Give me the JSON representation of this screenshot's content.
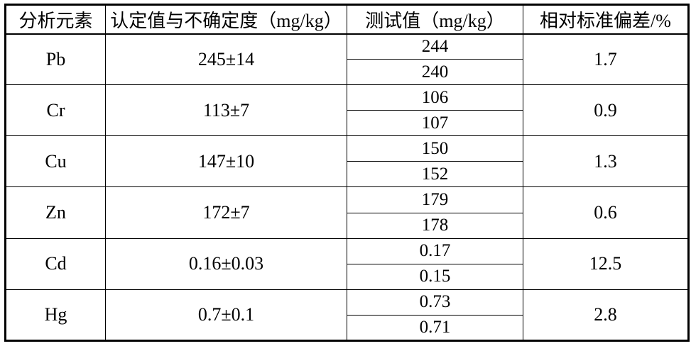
{
  "table": {
    "headers": {
      "element": "分析元素",
      "certified": "认定值与不确定度（mg/kg）",
      "test": "测试值（mg/kg）",
      "rsd": "相对标准偏差/%"
    },
    "rows": [
      {
        "element": "Pb",
        "certified": "245±14",
        "test1": "244",
        "test2": "240",
        "rsd": "1.7"
      },
      {
        "element": "Cr",
        "certified": "113±7",
        "test1": "106",
        "test2": "107",
        "rsd": "0.9"
      },
      {
        "element": "Cu",
        "certified": "147±10",
        "test1": "150",
        "test2": "152",
        "rsd": "1.3"
      },
      {
        "element": "Zn",
        "certified": "172±7",
        "test1": "179",
        "test2": "178",
        "rsd": "0.6"
      },
      {
        "element": "Cd",
        "certified": "0.16±0.03",
        "test1": "0.17",
        "test2": "0.15",
        "rsd": "12.5"
      },
      {
        "element": "Hg",
        "certified": "0.7±0.1",
        "test1": "0.73",
        "test2": "0.71",
        "rsd": "2.8"
      }
    ]
  },
  "chart_data": {
    "type": "table",
    "title": "",
    "columns": [
      "分析元素",
      "认定值与不确定度（mg/kg）",
      "测试值（mg/kg）",
      "相对标准偏差/%"
    ],
    "records": [
      [
        "Pb",
        "245±14",
        "244 / 240",
        "1.7"
      ],
      [
        "Cr",
        "113±7",
        "106 / 107",
        "0.9"
      ],
      [
        "Cu",
        "147±10",
        "150 / 152",
        "1.3"
      ],
      [
        "Zn",
        "172±7",
        "179 / 178",
        "0.6"
      ],
      [
        "Cd",
        "0.16±0.03",
        "0.17 / 0.15",
        "12.5"
      ],
      [
        "Hg",
        "0.7±0.1",
        "0.73 / 0.71",
        "2.8"
      ]
    ]
  }
}
